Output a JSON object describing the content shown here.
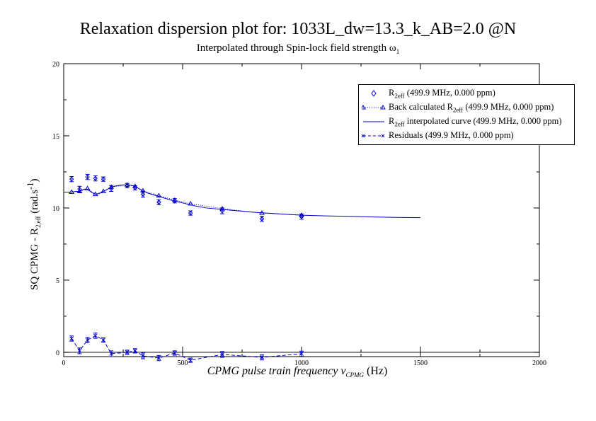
{
  "title": "Relaxation dispersion plot for: 1033L_dw=13.3_k_AB=2.0 @N",
  "subtitle_prefix": "Interpolated through Spin-lock field strength ω",
  "subtitle_sub": "1",
  "xlabel_prefix": "CPMG pulse train frequency ν",
  "xlabel_sub": "CPMG",
  "xlabel_suffix": " (Hz)",
  "ylabel_prefix": "SQ CPMG - R",
  "ylabel_sub": "2,eff",
  "ylabel_suffix": "  (rad.s",
  "ylabel_sup": "-1",
  "ylabel_end": ")",
  "legend": [
    {
      "pre": "R",
      "sub": "2eff",
      "post": " (499.9 MHz, 0.000 ppm)"
    },
    {
      "pre": "Back calculated R",
      "sub": "2eff",
      "post": " (499.9 MHz, 0.000 ppm)"
    },
    {
      "pre": "R",
      "sub": "2eff",
      "post": " interpolated curve (499.9 MHz, 0.000 ppm)"
    },
    {
      "pre": "Residuals",
      "sub": "",
      "post": " (499.9 MHz, 0.000 ppm)"
    }
  ],
  "colors": {
    "series": "#0000cc",
    "axis": "#000000"
  },
  "chart_data": {
    "type": "scatter",
    "xlim": [
      0,
      2000
    ],
    "ylim": [
      -0.3,
      20
    ],
    "x_major_ticks": [
      0,
      500,
      1000,
      1500,
      2000
    ],
    "x_tick_labels": [
      "0",
      "500",
      "1000",
      "1500",
      "2000"
    ],
    "y_major_ticks": [
      0,
      5,
      10,
      15,
      20
    ],
    "y_tick_labels": [
      "0",
      "5",
      "10",
      "15",
      "20"
    ],
    "legend_position": "top-right",
    "series": [
      {
        "name": "R2eff (499.9 MHz, 0.000 ppm)",
        "kind": "points_errorbars",
        "x": [
          33.3,
          66.7,
          100,
          133.3,
          166.7,
          200,
          266.7,
          300,
          333.3,
          400,
          466.7,
          533.3,
          666.7,
          833.3,
          1000
        ],
        "y": [
          12.0,
          11.3,
          12.15,
          12.05,
          12.0,
          11.35,
          11.55,
          11.4,
          10.95,
          10.4,
          10.5,
          9.65,
          9.8,
          9.25,
          9.4
        ],
        "err": [
          0.18,
          0.2,
          0.18,
          0.18,
          0.15,
          0.2,
          0.15,
          0.15,
          0.2,
          0.18,
          0.15,
          0.15,
          0.2,
          0.18,
          0.18
        ]
      },
      {
        "name": "Back calculated R2eff (499.9 MHz, 0.000 ppm)",
        "kind": "triangles_dotted",
        "x": [
          33.3,
          66.7,
          100,
          133.3,
          166.7,
          200,
          266.7,
          300,
          333.3,
          400,
          466.7,
          533.3,
          666.7,
          833.3,
          1000
        ],
        "y": [
          11.1,
          11.15,
          11.35,
          10.95,
          11.15,
          11.45,
          11.6,
          11.5,
          11.2,
          10.85,
          10.55,
          10.3,
          9.95,
          9.65,
          9.5
        ]
      },
      {
        "name": "R2eff interpolated curve (499.9 MHz, 0.000 ppm)",
        "kind": "line",
        "x": [
          0,
          33.3,
          50,
          66.7,
          85,
          100,
          115,
          133.3,
          150,
          166.7,
          185,
          200,
          225,
          250,
          275,
          300,
          325,
          350,
          400,
          450,
          500,
          550,
          600,
          700,
          800,
          900,
          1000,
          1100,
          1200,
          1300,
          1400,
          1500
        ],
        "y": [
          11.1,
          11.1,
          11.15,
          11.15,
          11.3,
          11.3,
          11.1,
          10.95,
          11.0,
          11.15,
          11.3,
          11.45,
          11.55,
          11.6,
          11.6,
          11.5,
          11.25,
          11.05,
          10.8,
          10.55,
          10.35,
          10.15,
          10.0,
          9.85,
          9.7,
          9.6,
          9.5,
          9.45,
          9.42,
          9.38,
          9.35,
          9.33
        ]
      },
      {
        "name": "Residuals (499.9 MHz, 0.000 ppm)",
        "kind": "crosses_dashed",
        "x": [
          33.3,
          66.7,
          100,
          133.3,
          166.7,
          200,
          266.7,
          300,
          333.3,
          400,
          466.7,
          533.3,
          666.7,
          833.3,
          1000
        ],
        "y": [
          0.95,
          0.1,
          0.85,
          1.15,
          0.85,
          -0.1,
          0.0,
          0.1,
          -0.25,
          -0.4,
          -0.05,
          -0.55,
          -0.15,
          -0.35,
          -0.1
        ],
        "err": [
          0.18,
          0.2,
          0.18,
          0.18,
          0.15,
          0.2,
          0.15,
          0.15,
          0.2,
          0.18,
          0.15,
          0.15,
          0.2,
          0.18,
          0.18
        ]
      }
    ]
  }
}
